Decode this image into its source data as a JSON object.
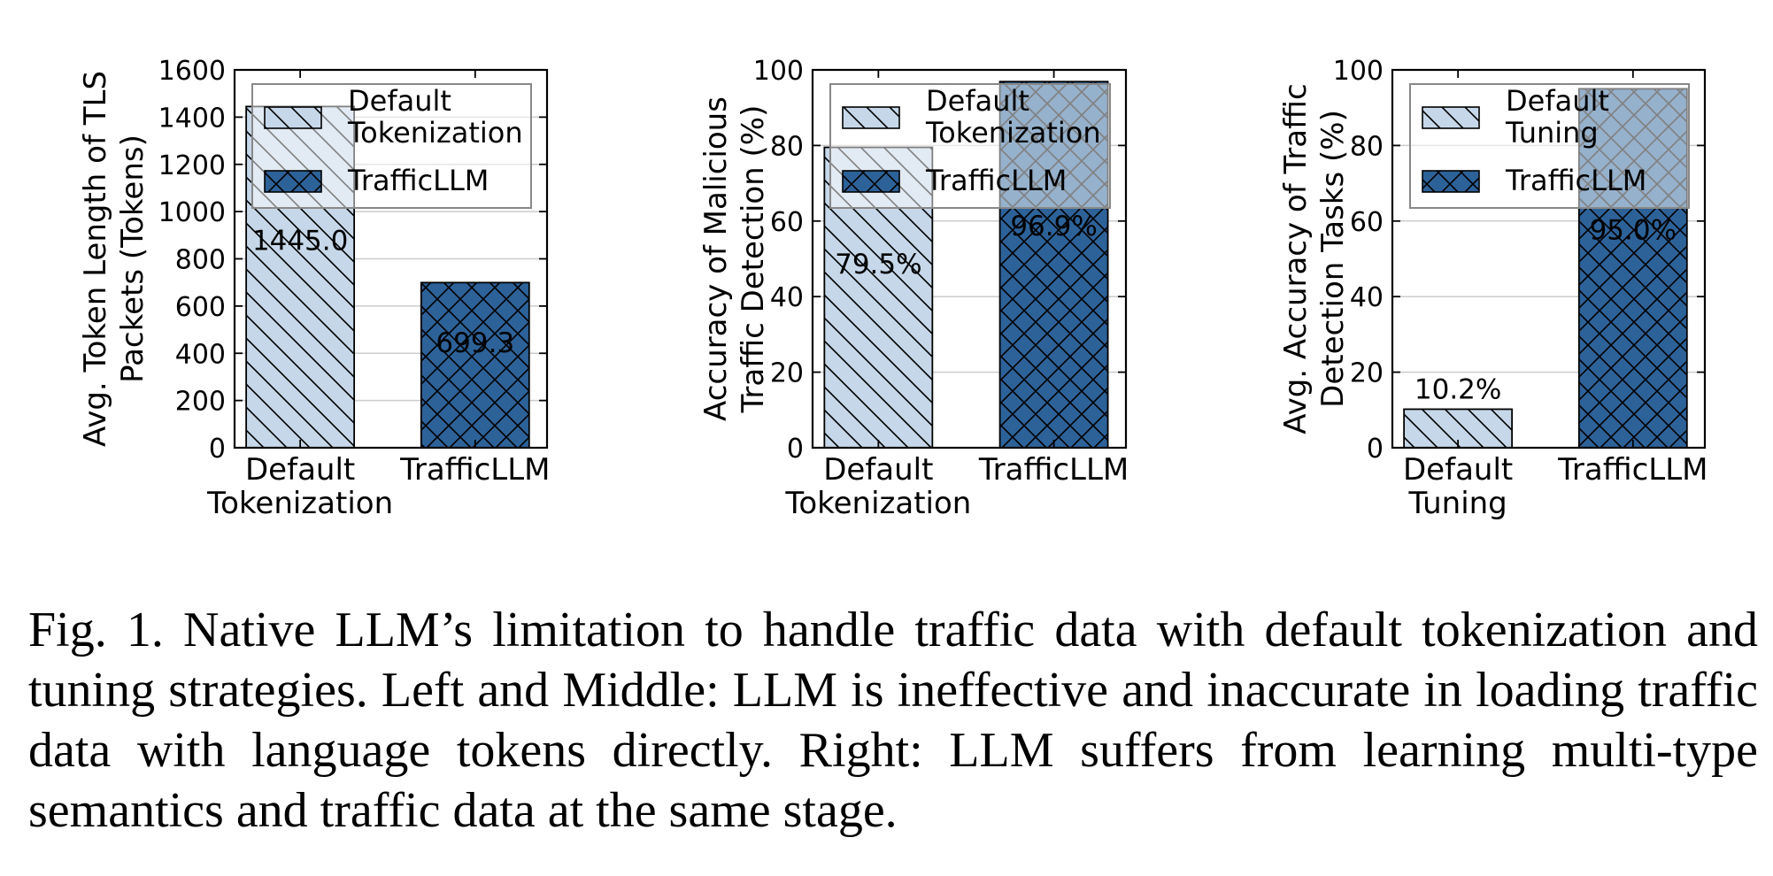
{
  "chart_data": [
    {
      "type": "bar",
      "categories": [
        "Default Tokenization",
        "TrafficLLM"
      ],
      "category_lines": [
        [
          "Default",
          "Tokenization"
        ],
        [
          "TrafficLLM"
        ]
      ],
      "values": [
        1445.0,
        699.3
      ],
      "value_labels": [
        "1445.0",
        "699.3"
      ],
      "ylabel_lines": [
        "Avg. Token Length of TLS",
        "Packets (Tokens)"
      ],
      "ylim": [
        0,
        1600
      ],
      "yticks": [
        0,
        200,
        400,
        600,
        800,
        1000,
        1200,
        1400,
        1600
      ],
      "grid": true,
      "legend_position": "top-right",
      "legend": [
        {
          "lines": [
            "Default",
            "Tokenization"
          ],
          "style": "light"
        },
        {
          "lines": [
            "TrafficLLM"
          ],
          "style": "dark"
        }
      ]
    },
    {
      "type": "bar",
      "categories": [
        "Default Tokenization",
        "TrafficLLM"
      ],
      "category_lines": [
        [
          "Default",
          "Tokenization"
        ],
        [
          "TrafficLLM"
        ]
      ],
      "values": [
        79.5,
        96.9
      ],
      "value_labels": [
        "79.5%",
        "96.9%"
      ],
      "ylabel_lines": [
        "Accuracy of Malicious",
        "Traffic Detection (%)"
      ],
      "ylim": [
        0,
        100
      ],
      "yticks": [
        0,
        20,
        40,
        60,
        80,
        100
      ],
      "grid": true,
      "legend_position": "top-right",
      "legend": [
        {
          "lines": [
            "Default",
            "Tokenization"
          ],
          "style": "light"
        },
        {
          "lines": [
            "TrafficLLM"
          ],
          "style": "dark"
        }
      ]
    },
    {
      "type": "bar",
      "categories": [
        "Default Tuning",
        "TrafficLLM"
      ],
      "category_lines": [
        [
          "Default",
          "Tuning"
        ],
        [
          "TrafficLLM"
        ]
      ],
      "values": [
        10.2,
        95.0
      ],
      "value_labels": [
        "10.2%",
        "95.0%"
      ],
      "ylabel_lines": [
        "Avg. Accuracy of Traffic",
        "Detection Tasks (%)"
      ],
      "ylim": [
        0,
        100
      ],
      "yticks": [
        0,
        20,
        40,
        60,
        80,
        100
      ],
      "grid": true,
      "legend_position": "top-right",
      "legend": [
        {
          "lines": [
            "Default",
            "Tuning"
          ],
          "style": "light"
        },
        {
          "lines": [
            "TrafficLLM"
          ],
          "style": "dark"
        }
      ]
    }
  ],
  "colors": {
    "light": "#c5d7e8",
    "dark": "#2d6299",
    "axis": "#000000",
    "grid": "#cccccc",
    "label_inside": "#ffffff",
    "label_outside": "#000000"
  },
  "caption": "Fig. 1.  Native LLM’s limitation to handle traffic data with default tokenization and tuning strategies. Left and Middle: LLM is ineffective and inaccurate in loading traffic data with language tokens directly. Right: LLM suffers from learning multi-type semantics and traffic data at the same stage."
}
